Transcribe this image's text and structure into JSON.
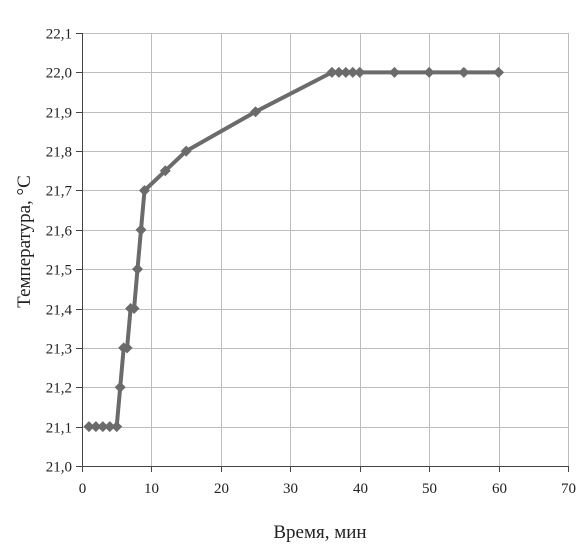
{
  "chart_data": {
    "type": "line",
    "title": "",
    "xlabel": "Время, мин",
    "ylabel": "Температура, °С",
    "xlim": [
      0,
      70
    ],
    "ylim": [
      21.0,
      22.1
    ],
    "x_ticks": [
      0,
      10,
      20,
      30,
      40,
      50,
      60,
      70
    ],
    "x_tick_labels": [
      "0",
      "10",
      "20",
      "30",
      "40",
      "50",
      "60",
      "70"
    ],
    "y_ticks": [
      21.0,
      21.1,
      21.2,
      21.3,
      21.4,
      21.5,
      21.6,
      21.7,
      21.8,
      21.9,
      22.0,
      22.1
    ],
    "y_tick_labels": [
      "21,0",
      "21,1",
      "21,2",
      "21,3",
      "21,4",
      "21,5",
      "21,6",
      "21,7",
      "21,8",
      "21,9",
      "22,0",
      "22,1"
    ],
    "grid": true,
    "legend": "none",
    "line_color": "#6b6b6b",
    "series": [
      {
        "marker": "diamond",
        "x": [
          1,
          2,
          3,
          4,
          5,
          5.5,
          6,
          6.5,
          7,
          7.5,
          8,
          8.5,
          9,
          12,
          15,
          25,
          36,
          37,
          38,
          39,
          40,
          45,
          50,
          55,
          60
        ],
        "y": [
          21.1,
          21.1,
          21.1,
          21.1,
          21.1,
          21.2,
          21.3,
          21.3,
          21.4,
          21.4,
          21.5,
          21.6,
          21.7,
          21.75,
          21.8,
          21.9,
          22.0,
          22.0,
          22.0,
          22.0,
          22.0,
          22.0,
          22.0,
          22.0,
          22.0
        ]
      }
    ]
  }
}
